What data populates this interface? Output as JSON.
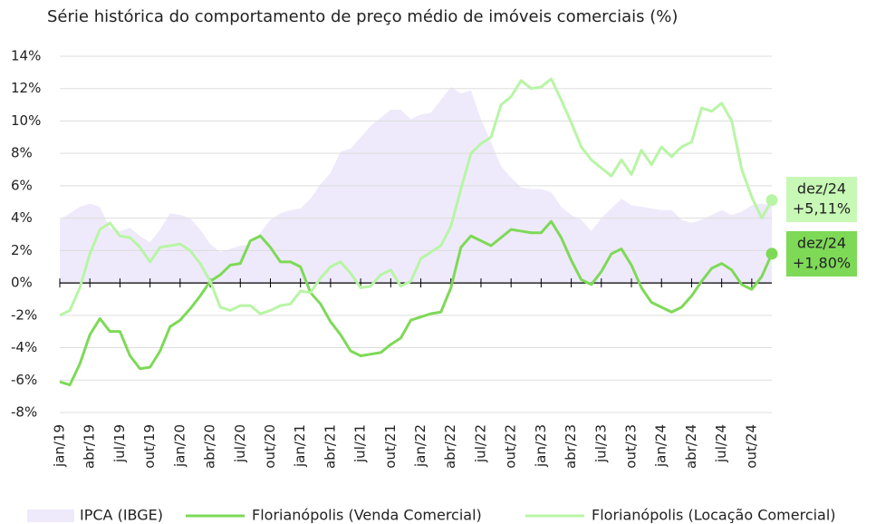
{
  "chart_data": {
    "type": "line",
    "title": "Série histórica do comportamento de preço médio de imóveis comerciais (%)",
    "categories": [
      "jan/19",
      null,
      null,
      "abr/19",
      null,
      null,
      "jul/19",
      null,
      null,
      "out/19",
      null,
      null,
      "jan/20",
      null,
      null,
      "abr/20",
      null,
      null,
      "jul/20",
      null,
      null,
      "out/20",
      null,
      null,
      "jan/21",
      null,
      null,
      "abr/21",
      null,
      null,
      "jul/21",
      null,
      null,
      "out/21",
      null,
      null,
      "jan/22",
      null,
      null,
      "abr/22",
      null,
      null,
      "jul/22",
      null,
      null,
      "out/22",
      null,
      null,
      "jan/23",
      null,
      null,
      "abr/23",
      null,
      null,
      "jul/23",
      null,
      null,
      "out/23",
      null,
      null,
      "jan/24",
      null,
      null,
      "abr/24",
      null,
      null,
      "jul/24",
      null,
      null,
      "out/24",
      null,
      null
    ],
    "series": [
      {
        "name": "IPCA (IBGE)",
        "kind": "area",
        "color": "#eeeafb",
        "values": [
          3.9,
          4.3,
          4.7,
          4.9,
          4.7,
          3.4,
          3.2,
          3.4,
          2.9,
          2.5,
          3.3,
          4.3,
          4.2,
          4.0,
          3.3,
          2.4,
          1.9,
          2.1,
          2.3,
          2.4,
          3.1,
          3.9,
          4.3,
          4.5,
          4.6,
          5.2,
          6.1,
          6.8,
          8.1,
          8.3,
          9.0,
          9.7,
          10.2,
          10.7,
          10.7,
          10.1,
          10.4,
          10.5,
          11.3,
          12.1,
          11.7,
          11.9,
          10.1,
          8.7,
          7.2,
          6.5,
          5.9,
          5.8,
          5.8,
          5.6,
          4.7,
          4.2,
          3.9,
          3.2,
          4.0,
          4.6,
          5.2,
          4.8,
          4.7,
          4.6,
          4.5,
          4.5,
          3.9,
          3.7,
          3.9,
          4.2,
          4.5,
          4.2,
          4.4,
          4.8,
          4.9,
          4.8
        ]
      },
      {
        "name": "Florianópolis (Venda Comercial)",
        "kind": "line",
        "color": "#7ed957",
        "values": [
          -6.1,
          -6.3,
          -5.0,
          -3.2,
          -2.2,
          -3.0,
          -3.0,
          -4.5,
          -5.3,
          -5.2,
          -4.2,
          -2.7,
          -2.3,
          -1.6,
          -0.8,
          0.1,
          0.5,
          1.1,
          1.2,
          2.6,
          2.9,
          2.2,
          1.3,
          1.3,
          1.0,
          -0.6,
          -1.3,
          -2.4,
          -3.2,
          -4.2,
          -4.5,
          -4.4,
          -4.3,
          -3.8,
          -3.4,
          -2.3,
          -2.1,
          -1.9,
          -1.8,
          -0.3,
          2.2,
          2.9,
          2.6,
          2.3,
          2.8,
          3.3,
          3.2,
          3.1,
          3.1,
          3.8,
          2.8,
          1.4,
          0.2,
          -0.1,
          0.7,
          1.8,
          2.1,
          1.1,
          -0.3,
          -1.2,
          -1.5,
          -1.8,
          -1.5,
          -0.8,
          0.1,
          0.9,
          1.2,
          0.8,
          -0.1,
          -0.4,
          0.4,
          1.8
        ]
      },
      {
        "name": "Florianópolis (Locação Comercial)",
        "kind": "line",
        "color": "#b8f5a5",
        "values": [
          -2.0,
          -1.7,
          -0.3,
          1.8,
          3.3,
          3.7,
          2.9,
          2.8,
          2.2,
          1.3,
          2.2,
          2.3,
          2.4,
          2.0,
          1.2,
          0.1,
          -1.5,
          -1.7,
          -1.4,
          -1.4,
          -1.9,
          -1.7,
          -1.4,
          -1.3,
          -0.5,
          -0.6,
          0.3,
          1.0,
          1.3,
          0.6,
          -0.3,
          -0.2,
          0.5,
          0.8,
          -0.2,
          0.1,
          1.5,
          1.9,
          2.3,
          3.5,
          5.8,
          8.0,
          8.6,
          9.0,
          11.0,
          11.5,
          12.5,
          12.0,
          12.1,
          12.6,
          11.3,
          9.9,
          8.4,
          7.6,
          7.1,
          6.6,
          7.6,
          6.7,
          8.2,
          7.3,
          8.4,
          7.8,
          8.4,
          8.7,
          10.8,
          10.6,
          11.1,
          10.0,
          7.0,
          5.3,
          4.0,
          5.11
        ]
      }
    ],
    "ylim": [
      -8,
      14
    ],
    "yticks": [
      {
        "value": -8,
        "label": "-8%"
      },
      {
        "value": -6,
        "label": "-6%"
      },
      {
        "value": -4,
        "label": "-4%"
      },
      {
        "value": -2,
        "label": "-2%"
      },
      {
        "value": 0,
        "label": "0%"
      },
      {
        "value": 2,
        "label": "2%"
      },
      {
        "value": 4,
        "label": "4%"
      },
      {
        "value": 6,
        "label": "6%"
      },
      {
        "value": 8,
        "label": "8%"
      },
      {
        "value": 10,
        "label": "10%"
      },
      {
        "value": 12,
        "label": "12%"
      },
      {
        "value": 14,
        "label": "14%"
      }
    ],
    "grid": true,
    "annotations": [
      {
        "series": 2,
        "color": "#c8f8b6",
        "lines": [
          "dez/24",
          "+5,11%"
        ]
      },
      {
        "series": 1,
        "color": "#7ed957",
        "lines": [
          "dez/24",
          "+1,80%"
        ]
      }
    ]
  }
}
